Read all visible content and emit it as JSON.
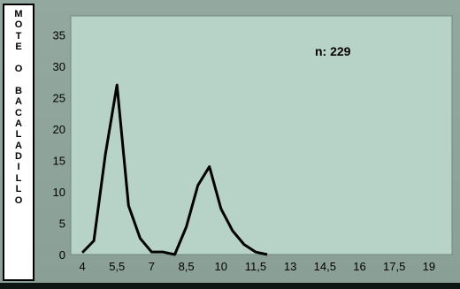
{
  "side_label": {
    "letters": [
      "M",
      "O",
      "T",
      "E",
      "",
      "O",
      "",
      "B",
      "A",
      "C",
      "A",
      "L",
      "A",
      "D",
      "I",
      "L",
      "L",
      "O"
    ]
  },
  "chart_data": {
    "type": "line",
    "annotation": "n: 229",
    "x": [
      4,
      4.5,
      5,
      5.5,
      6,
      6.5,
      7,
      7.5,
      8,
      8.5,
      9,
      9.5,
      10,
      10.5,
      11,
      11.5,
      12
    ],
    "series": [
      {
        "values": [
          0.3,
          2.2,
          16,
          27,
          7.8,
          2.6,
          0.4,
          0.4,
          0,
          4.4,
          11,
          14,
          7.3,
          3.8,
          1.6,
          0.4,
          0
        ]
      }
    ],
    "xticks": [
      "4",
      "5,5",
      "7",
      "8,5",
      "10",
      "11,5",
      "13",
      "14,5",
      "16",
      "17,5",
      "19"
    ],
    "xtick_values": [
      4,
      5.5,
      7,
      8.5,
      10,
      11.5,
      13,
      14.5,
      16,
      17.5,
      19
    ],
    "yticks": [
      "0",
      "5",
      "10",
      "15",
      "20",
      "25",
      "30",
      "35"
    ],
    "ytick_values": [
      0,
      5,
      10,
      15,
      20,
      25,
      30,
      35
    ],
    "xlim": [
      3.5,
      20
    ],
    "ylim": [
      0,
      38
    ],
    "grid": false,
    "colors": {
      "plot_bg": "#b7d2c6",
      "line": "#000000",
      "frame_bg": "#8fa39a"
    }
  }
}
